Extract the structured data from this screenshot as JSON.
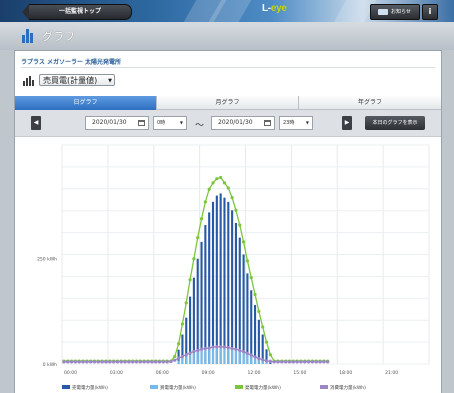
{
  "header": {
    "back_label": "一括監視トップ",
    "brand_prefix": "L-",
    "brand_suffix": "eye",
    "notice_label": "お知らせ",
    "info_label": "i",
    "icons": {
      "back": "arrow-left-icon",
      "notice": "mail-icon",
      "info": "info-icon"
    }
  },
  "page": {
    "title": "グラフ",
    "icon": "bar-chart-icon"
  },
  "plant": {
    "name": "ラプラス メガソーラー 太陽光発電所"
  },
  "metric_select": {
    "value": "売買電(計量値)",
    "icon": "bar-chart-icon"
  },
  "tabs": [
    {
      "label": "日グラフ",
      "active": true
    },
    {
      "label": "月グラフ",
      "active": false
    },
    {
      "label": "年グラフ",
      "active": false
    }
  ],
  "date_nav": {
    "prev_label": "◀",
    "next_label": "▶",
    "start_date": "2020/01/30",
    "start_hour": "0時",
    "separator": "〜",
    "end_date": "2020/01/30",
    "end_hour": "23時",
    "today_button": "本日のグラフを表示",
    "icons": {
      "date": "calendar-icon"
    }
  },
  "chart_data": {
    "type": "bar",
    "ylabel_ticks": [
      "0 kWh",
      "250 kWh"
    ],
    "ylim": [
      0,
      520
    ],
    "x_tick_labels": [
      "00:00",
      "03:00",
      "06:00",
      "09:00",
      "12:00",
      "15:00",
      "18:00",
      "21:00"
    ],
    "grid": true,
    "legend_position": "bottom",
    "slot_count": 96,
    "series": [
      {
        "name": "売電電力量(kWh)",
        "kind": "bar",
        "color": "#2859a6",
        "slots": [
          [
            30,
            34
          ],
          [
            31,
            70
          ],
          [
            32,
            110
          ],
          [
            33,
            160
          ],
          [
            34,
            205
          ],
          [
            35,
            250
          ],
          [
            36,
            290
          ],
          [
            37,
            330
          ],
          [
            38,
            360
          ],
          [
            39,
            385
          ],
          [
            40,
            400
          ],
          [
            41,
            405
          ],
          [
            42,
            395
          ],
          [
            43,
            385
          ],
          [
            44,
            365
          ],
          [
            45,
            335
          ],
          [
            46,
            300
          ],
          [
            47,
            260
          ],
          [
            48,
            215
          ],
          [
            49,
            175
          ],
          [
            50,
            140
          ],
          [
            51,
            105
          ],
          [
            52,
            70
          ],
          [
            53,
            35
          ],
          [
            54,
            10
          ]
        ]
      },
      {
        "name": "買電電力量(kWh)",
        "kind": "bar",
        "color": "#78b9e8",
        "slots": [
          [
            30,
            8
          ],
          [
            31,
            14
          ],
          [
            32,
            18
          ],
          [
            33,
            22
          ],
          [
            34,
            26
          ],
          [
            35,
            30
          ],
          [
            36,
            32
          ],
          [
            37,
            35
          ],
          [
            38,
            36
          ],
          [
            39,
            37
          ],
          [
            40,
            38
          ],
          [
            41,
            38
          ],
          [
            42,
            37
          ],
          [
            43,
            36
          ],
          [
            44,
            35
          ],
          [
            45,
            33
          ],
          [
            46,
            30
          ],
          [
            47,
            27
          ],
          [
            48,
            24
          ],
          [
            49,
            20
          ],
          [
            50,
            16
          ],
          [
            51,
            12
          ],
          [
            52,
            8
          ],
          [
            53,
            5
          ]
        ]
      },
      {
        "name": "発電電力量(kWh)",
        "kind": "line",
        "color": "#7cc63c",
        "slots": [
          [
            0,
            7
          ],
          [
            1,
            7
          ],
          [
            2,
            7
          ],
          [
            3,
            7
          ],
          [
            4,
            7
          ],
          [
            5,
            7
          ],
          [
            6,
            7
          ],
          [
            7,
            7
          ],
          [
            8,
            7
          ],
          [
            9,
            7
          ],
          [
            10,
            7
          ],
          [
            11,
            7
          ],
          [
            12,
            7
          ],
          [
            13,
            7
          ],
          [
            14,
            7
          ],
          [
            15,
            7
          ],
          [
            16,
            7
          ],
          [
            17,
            7
          ],
          [
            18,
            7
          ],
          [
            19,
            7
          ],
          [
            20,
            7
          ],
          [
            21,
            7
          ],
          [
            22,
            7
          ],
          [
            23,
            7
          ],
          [
            24,
            7
          ],
          [
            25,
            7
          ],
          [
            26,
            7
          ],
          [
            27,
            7
          ],
          [
            28,
            7
          ],
          [
            29,
            18
          ],
          [
            30,
            48
          ],
          [
            31,
            95
          ],
          [
            32,
            145
          ],
          [
            33,
            200
          ],
          [
            34,
            250
          ],
          [
            35,
            300
          ],
          [
            36,
            345
          ],
          [
            37,
            385
          ],
          [
            38,
            415
          ],
          [
            39,
            430
          ],
          [
            40,
            440
          ],
          [
            41,
            443
          ],
          [
            42,
            430
          ],
          [
            43,
            418
          ],
          [
            44,
            395
          ],
          [
            45,
            365
          ],
          [
            46,
            330
          ],
          [
            47,
            290
          ],
          [
            48,
            245
          ],
          [
            49,
            205
          ],
          [
            50,
            165
          ],
          [
            51,
            125
          ],
          [
            52,
            88
          ],
          [
            53,
            52
          ],
          [
            54,
            22
          ],
          [
            55,
            7
          ],
          [
            56,
            7
          ],
          [
            57,
            7
          ],
          [
            58,
            7
          ],
          [
            59,
            7
          ],
          [
            60,
            7
          ],
          [
            61,
            7
          ],
          [
            62,
            7
          ],
          [
            63,
            7
          ],
          [
            64,
            7
          ],
          [
            65,
            7
          ],
          [
            66,
            7
          ],
          [
            67,
            7
          ],
          [
            68,
            7
          ],
          [
            69,
            7
          ]
        ]
      },
      {
        "name": "消費電力量(kWh)",
        "kind": "line",
        "color": "#9b86c8",
        "slots": [
          [
            0,
            5
          ],
          [
            1,
            5
          ],
          [
            2,
            5
          ],
          [
            3,
            5
          ],
          [
            4,
            5
          ],
          [
            5,
            5
          ],
          [
            6,
            5
          ],
          [
            7,
            5
          ],
          [
            8,
            5
          ],
          [
            9,
            5
          ],
          [
            10,
            5
          ],
          [
            11,
            5
          ],
          [
            12,
            5
          ],
          [
            13,
            5
          ],
          [
            14,
            5
          ],
          [
            15,
            5
          ],
          [
            16,
            5
          ],
          [
            17,
            5
          ],
          [
            18,
            5
          ],
          [
            19,
            5
          ],
          [
            20,
            5
          ],
          [
            21,
            5
          ],
          [
            22,
            5
          ],
          [
            23,
            5
          ],
          [
            24,
            5
          ],
          [
            25,
            5
          ],
          [
            26,
            5
          ],
          [
            27,
            5
          ],
          [
            28,
            6
          ],
          [
            29,
            9
          ],
          [
            30,
            14
          ],
          [
            31,
            18
          ],
          [
            32,
            22
          ],
          [
            33,
            26
          ],
          [
            34,
            30
          ],
          [
            35,
            32
          ],
          [
            36,
            35
          ],
          [
            37,
            37
          ],
          [
            38,
            38
          ],
          [
            39,
            40
          ],
          [
            40,
            41
          ],
          [
            41,
            41
          ],
          [
            42,
            40
          ],
          [
            43,
            39
          ],
          [
            44,
            37
          ],
          [
            45,
            35
          ],
          [
            46,
            32
          ],
          [
            47,
            29
          ],
          [
            48,
            25
          ],
          [
            49,
            21
          ],
          [
            50,
            17
          ],
          [
            51,
            13
          ],
          [
            52,
            10
          ],
          [
            53,
            7
          ],
          [
            54,
            6
          ],
          [
            55,
            5
          ],
          [
            56,
            5
          ],
          [
            57,
            5
          ],
          [
            58,
            5
          ],
          [
            59,
            5
          ],
          [
            60,
            5
          ],
          [
            61,
            5
          ],
          [
            62,
            5
          ],
          [
            63,
            5
          ],
          [
            64,
            5
          ],
          [
            65,
            5
          ],
          [
            66,
            5
          ],
          [
            67,
            5
          ],
          [
            68,
            5
          ],
          [
            69,
            5
          ]
        ]
      }
    ]
  }
}
